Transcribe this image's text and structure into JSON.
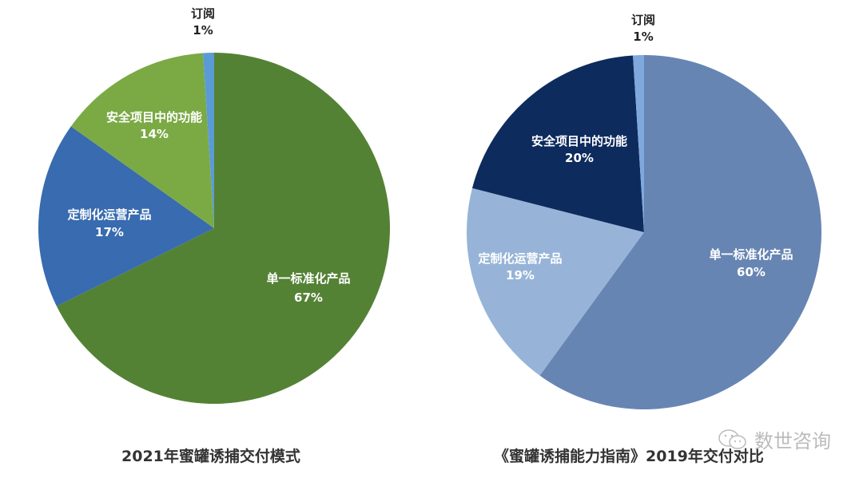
{
  "chart_data": [
    {
      "type": "pie",
      "title": "2021年蜜罐诱捕交付模式",
      "categories": [
        "单一标准化产品",
        "定制化运营产品",
        "安全项目中的功能",
        "订阅"
      ],
      "values": [
        67,
        17,
        14,
        1
      ],
      "labels": [
        "67%",
        "17%",
        "14%",
        "1%"
      ],
      "colors": [
        "#548235",
        "#386BAF",
        "#7BAA45",
        "#5B9BD5"
      ],
      "start": "12 o'clock, clockwise",
      "legend": "none (data labels on slices)"
    },
    {
      "type": "pie",
      "title": "《蜜罐诱捕能力指南》2019年交付对比",
      "categories": [
        "单一标准化产品",
        "定制化运营产品",
        "安全项目中的功能",
        "订阅"
      ],
      "values": [
        60,
        19,
        20,
        1
      ],
      "labels": [
        "60%",
        "19%",
        "20%",
        "1%"
      ],
      "colors": [
        "#6785B3",
        "#97B4D8",
        "#0E2B5E",
        "#7FA8DC"
      ],
      "start": "12 o'clock, clockwise",
      "legend": "none (data labels on slices)"
    }
  ],
  "left": {
    "title": "2021年蜜罐诱捕交付模式",
    "slices": [
      {
        "name": "单一标准化产品",
        "pct": "67%"
      },
      {
        "name": "定制化运营产品",
        "pct": "17%"
      },
      {
        "name": "安全项目中的功能",
        "pct": "14%"
      },
      {
        "name": "订阅",
        "pct": "1%"
      }
    ]
  },
  "right": {
    "title": "《蜜罐诱捕能力指南》2019年交付对比",
    "slices": [
      {
        "name": "单一标准化产品",
        "pct": "60%"
      },
      {
        "name": "定制化运营产品",
        "pct": "19%"
      },
      {
        "name": "安全项目中的功能",
        "pct": "20%"
      },
      {
        "name": "订阅",
        "pct": "1%"
      }
    ]
  },
  "watermark": {
    "text": "数世咨询",
    "icon": "wechat-icon"
  }
}
